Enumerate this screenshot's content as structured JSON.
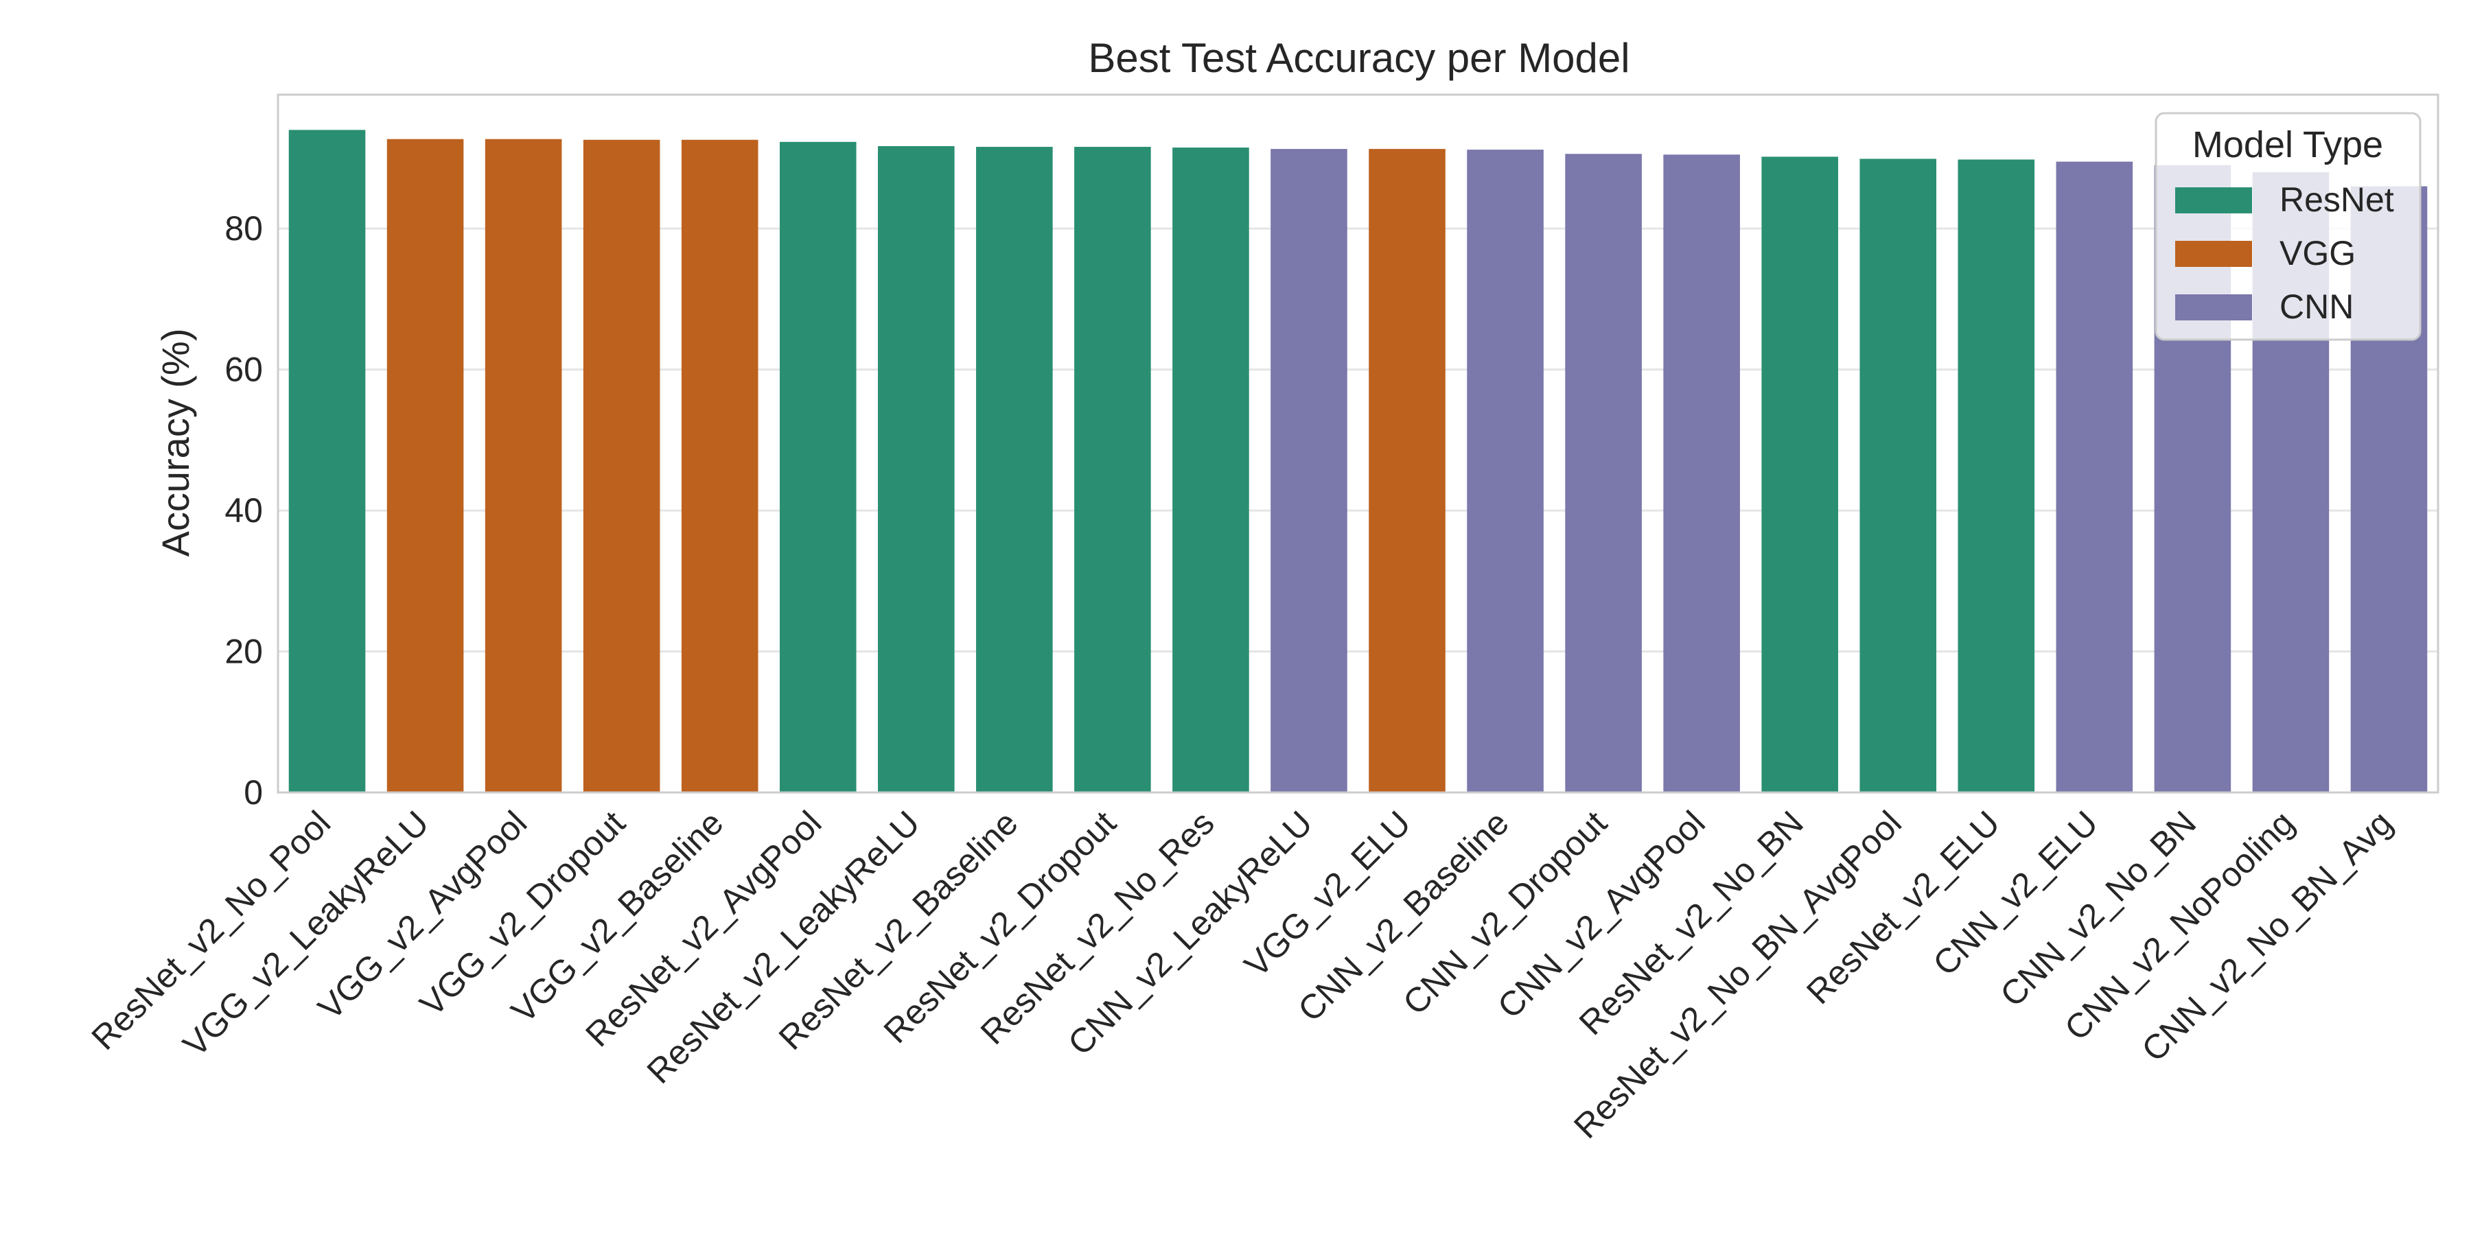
{
  "chart_data": {
    "type": "bar",
    "title": "Best Test Accuracy per Model",
    "xlabel": "",
    "ylabel": "Accuracy (%)",
    "ylim": [
      0,
      99
    ],
    "yticks": [
      0,
      20,
      40,
      60,
      80
    ],
    "grid": true,
    "legend": {
      "title": "Model Type",
      "placement": "top-right",
      "entries": [
        {
          "label": "ResNet",
          "color": "#2a8f72"
        },
        {
          "label": "VGG",
          "color": "#bd611e"
        },
        {
          "label": "CNN",
          "color": "#7b78ab"
        }
      ]
    },
    "categories": [
      "ResNet_v2_No_Pool",
      "VGG_v2_LeakyReLU",
      "VGG_v2_AvgPool",
      "VGG_v2_Dropout",
      "VGG_v2_Baseline",
      "ResNet_v2_AvgPool",
      "ResNet_v2_LeakyReLU",
      "ResNet_v2_Baseline",
      "ResNet_v2_Dropout",
      "ResNet_v2_No_Res",
      "CNN_v2_LeakyReLU",
      "VGG_v2_ELU",
      "CNN_v2_Baseline",
      "CNN_v2_Dropout",
      "CNN_v2_AvgPool",
      "ResNet_v2_No_BN",
      "ResNet_v2_No_BN_AvgPool",
      "ResNet_v2_ELU",
      "CNN_v2_ELU",
      "CNN_v2_No_BN",
      "CNN_v2_NoPooling",
      "CNN_v2_No_BN_Avg"
    ],
    "values": [
      94.0,
      92.7,
      92.7,
      92.6,
      92.6,
      92.3,
      91.7,
      91.6,
      91.6,
      91.5,
      91.3,
      91.3,
      91.2,
      90.6,
      90.5,
      90.2,
      89.9,
      89.8,
      89.5,
      89.0,
      88.0,
      86.0
    ],
    "model_types": [
      "ResNet",
      "VGG",
      "VGG",
      "VGG",
      "VGG",
      "ResNet",
      "ResNet",
      "ResNet",
      "ResNet",
      "ResNet",
      "CNN",
      "VGG",
      "CNN",
      "CNN",
      "CNN",
      "ResNet",
      "ResNet",
      "ResNet",
      "CNN",
      "CNN",
      "CNN",
      "CNN"
    ]
  }
}
